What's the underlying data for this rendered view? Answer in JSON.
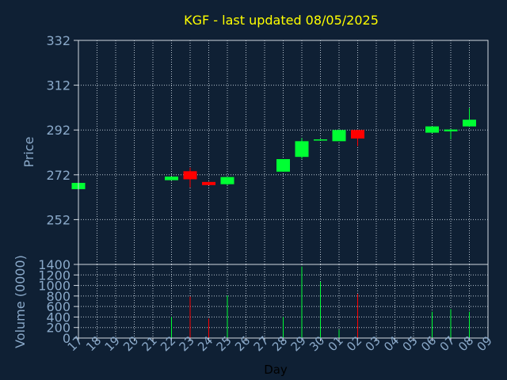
{
  "chart_data": {
    "type": "candlestick",
    "title": "KGF - last updated 08/05/2025",
    "xlabel": "Day",
    "days": [
      "17",
      "18",
      "19",
      "20",
      "21",
      "22",
      "23",
      "24",
      "25",
      "26",
      "27",
      "28",
      "29",
      "30",
      "01",
      "02",
      "03",
      "04",
      "05",
      "06",
      "07",
      "08",
      "09"
    ],
    "price": {
      "ylabel": "Price",
      "ylim": [
        232,
        332
      ],
      "yticks": [
        252,
        272,
        292,
        312,
        332
      ],
      "candles": [
        {
          "day": "17",
          "open": 265.6,
          "close": 268.4,
          "high": 268.4,
          "low": 265.6
        },
        {
          "day": "22",
          "open": 269.6,
          "close": 271.2,
          "high": 271.2,
          "low": 269.6
        },
        {
          "day": "23",
          "open": 273.6,
          "close": 270.0,
          "high": 275.2,
          "low": 266.4
        },
        {
          "day": "24",
          "open": 268.8,
          "close": 267.4,
          "high": 268.8,
          "low": 267.4
        },
        {
          "day": "25",
          "open": 267.8,
          "close": 271.0,
          "high": 271.0,
          "low": 267.4
        },
        {
          "day": "28",
          "open": 273.4,
          "close": 279.0,
          "high": 279.0,
          "low": 273.4
        },
        {
          "day": "29",
          "open": 280.0,
          "close": 287.0,
          "high": 288.4,
          "low": 279.2
        },
        {
          "day": "30",
          "open": 287.4,
          "close": 287.8,
          "high": 288.0,
          "low": 287.2
        },
        {
          "day": "01",
          "open": 287.0,
          "close": 292.0,
          "high": 292.2,
          "low": 287.0
        },
        {
          "day": "02",
          "open": 292.0,
          "close": 288.2,
          "high": 292.0,
          "low": 284.8
        },
        {
          "day": "06",
          "open": 290.8,
          "close": 293.6,
          "high": 293.6,
          "low": 290.6
        },
        {
          "day": "07",
          "open": 291.4,
          "close": 292.2,
          "high": 292.4,
          "low": 287.8
        },
        {
          "day": "08",
          "open": 293.6,
          "close": 296.6,
          "high": 301.8,
          "low": 293.4
        }
      ]
    },
    "volume": {
      "ylabel": "Volume (0000)",
      "ylim": [
        0,
        1400
      ],
      "yticks": [
        0,
        200,
        400,
        600,
        800,
        1000,
        1200,
        1400
      ],
      "bars": [
        {
          "day": "22",
          "value": 400,
          "direction": "up"
        },
        {
          "day": "23",
          "value": 790,
          "direction": "down"
        },
        {
          "day": "24",
          "value": 370,
          "direction": "down"
        },
        {
          "day": "25",
          "value": 810,
          "direction": "up"
        },
        {
          "day": "28",
          "value": 400,
          "direction": "up"
        },
        {
          "day": "29",
          "value": 1360,
          "direction": "up"
        },
        {
          "day": "30",
          "value": 1070,
          "direction": "up"
        },
        {
          "day": "01",
          "value": 160,
          "direction": "up"
        },
        {
          "day": "02",
          "value": 840,
          "direction": "down"
        },
        {
          "day": "06",
          "value": 500,
          "direction": "up"
        },
        {
          "day": "07",
          "value": 550,
          "direction": "up"
        },
        {
          "day": "08",
          "value": 500,
          "direction": "up"
        }
      ]
    },
    "grid": true,
    "colors": {
      "background": "#0f2034",
      "plot_border": "#d0d8e0",
      "grid": "#b8c4d0",
      "axis_text": "#8aa9c9",
      "title": "#ffff00",
      "up": "#00ff33",
      "down": "#ff0000",
      "xlabel": "#000000"
    }
  }
}
